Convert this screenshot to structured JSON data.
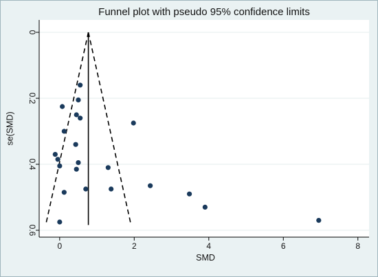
{
  "chart_data": {
    "type": "scatter",
    "title": "Funnel plot with pseudo 95% confidence limits",
    "xlabel": "SMD",
    "ylabel": "se(SMD)",
    "xlim": [
      -0.55,
      8.3
    ],
    "ylim": [
      0,
      0.6
    ],
    "y_inverted": true,
    "grid": "horizontal",
    "x_ticks": [
      0,
      2,
      4,
      6,
      8
    ],
    "y_ticks": [
      0,
      0.2,
      0.4,
      0.6
    ],
    "pooled_estimate": 0.77,
    "funnel_bottom_se": 0.58,
    "points": [
      {
        "x": 0.55,
        "y": 0.16
      },
      {
        "x": 0.5,
        "y": 0.205
      },
      {
        "x": 0.07,
        "y": 0.225
      },
      {
        "x": 0.45,
        "y": 0.25
      },
      {
        "x": 0.55,
        "y": 0.26
      },
      {
        "x": 1.98,
        "y": 0.275
      },
      {
        "x": 0.12,
        "y": 0.3
      },
      {
        "x": 0.43,
        "y": 0.34
      },
      {
        "x": -0.12,
        "y": 0.37
      },
      {
        "x": -0.05,
        "y": 0.385
      },
      {
        "x": 0.5,
        "y": 0.395
      },
      {
        "x": 0.0,
        "y": 0.405
      },
      {
        "x": 1.3,
        "y": 0.41
      },
      {
        "x": 0.45,
        "y": 0.415
      },
      {
        "x": 2.43,
        "y": 0.465
      },
      {
        "x": 0.7,
        "y": 0.475
      },
      {
        "x": 1.38,
        "y": 0.475
      },
      {
        "x": 0.12,
        "y": 0.485
      },
      {
        "x": 3.48,
        "y": 0.49
      },
      {
        "x": 3.9,
        "y": 0.53
      },
      {
        "x": 0.0,
        "y": 0.575
      },
      {
        "x": 6.95,
        "y": 0.57
      }
    ]
  },
  "style": {
    "background": "#eaf2f3",
    "plot_background": "#ffffff",
    "grid_color": "#e3ecee",
    "marker_color": "#1a3a5c",
    "line_color": "#000000"
  }
}
